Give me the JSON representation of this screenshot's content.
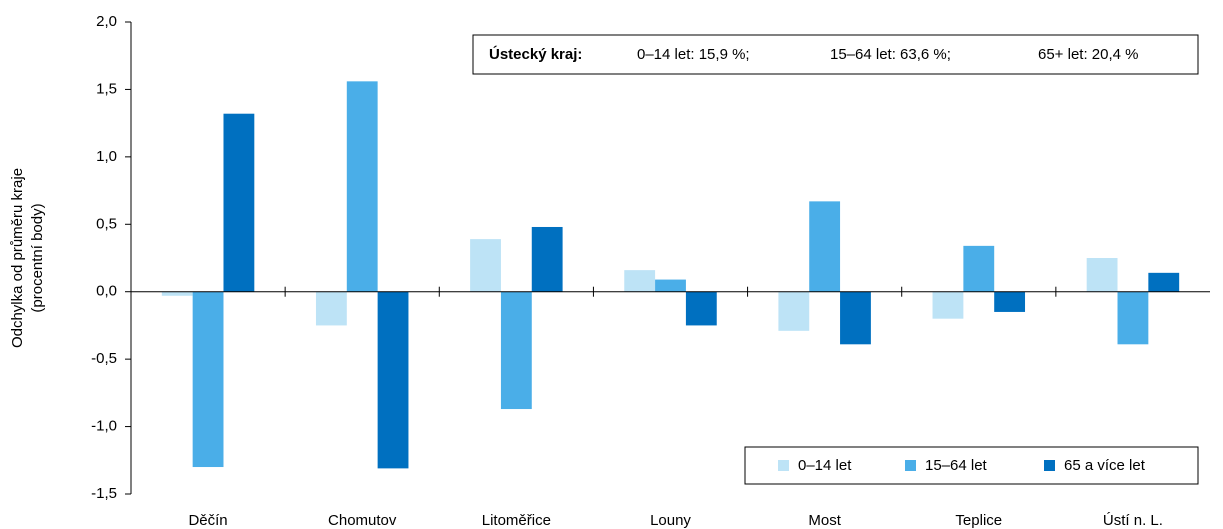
{
  "chart_data": {
    "type": "bar",
    "ylabel": [
      "Odchylka od průměru kraje",
      "(procentní body)"
    ],
    "annotation": {
      "label": "Ústecký kraj:",
      "items": [
        "0–14 let: 15,9 %;",
        "15–64 let: 63,6 %;",
        "65+ let: 20,4 %"
      ]
    },
    "categories": [
      "Děčín",
      "Chomutov",
      "Litoměřice",
      "Louny",
      "Most",
      "Teplice",
      "Ústí n. L."
    ],
    "series": [
      {
        "name": "0–14 let",
        "color": "#bde3f6",
        "values": [
          -0.03,
          -0.25,
          0.39,
          0.16,
          -0.29,
          -0.2,
          0.25
        ]
      },
      {
        "name": "15–64 let",
        "color": "#4aaee8",
        "values": [
          -1.3,
          1.56,
          -0.87,
          0.09,
          0.67,
          0.34,
          -0.39
        ]
      },
      {
        "name": "65 a více let",
        "color": "#0070c0",
        "values": [
          1.32,
          -1.31,
          0.48,
          -0.25,
          -0.39,
          -0.15,
          0.14
        ]
      }
    ],
    "ylim": [
      -1.5,
      2.0
    ],
    "yticks": [
      {
        "value": -1.5,
        "label": "-1,5"
      },
      {
        "value": -1.0,
        "label": "-1,0"
      },
      {
        "value": -0.5,
        "label": "-0,5"
      },
      {
        "value": 0.0,
        "label": "0,0"
      },
      {
        "value": 0.5,
        "label": "0,5"
      },
      {
        "value": 1.0,
        "label": "1,0"
      },
      {
        "value": 1.5,
        "label": "1,5"
      },
      {
        "value": 2.0,
        "label": "2,0"
      }
    ],
    "grid": false,
    "legend": "lower right"
  }
}
